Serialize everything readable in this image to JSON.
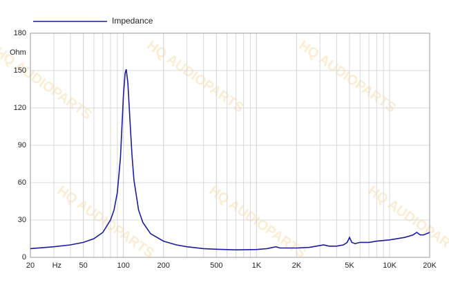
{
  "chart_data": {
    "type": "line",
    "watermark": "HQ AUDIOPARTS",
    "y_label": "Ohm",
    "x_label": "Hz",
    "x": [
      20,
      30,
      40,
      50,
      60,
      70,
      80,
      85,
      90,
      95,
      98,
      100,
      103,
      105,
      108,
      112,
      116,
      120,
      130,
      140,
      160,
      200,
      250,
      300,
      400,
      500,
      700,
      1000,
      1200,
      1400,
      1500,
      2000,
      2500,
      3000,
      3200,
      3500,
      4000,
      4500,
      4800,
      5000,
      5200,
      5500,
      6000,
      7000,
      8000,
      10000,
      13000,
      15000,
      16000,
      17000,
      18000,
      20000
    ],
    "series": [
      {
        "name": "Impedance",
        "color": "#1a1aa0",
        "values": [
          7,
          8.5,
          10,
          12,
          15,
          20,
          30,
          38,
          52,
          80,
          110,
          130,
          148,
          151,
          140,
          110,
          82,
          62,
          38,
          28,
          19,
          13,
          10,
          8.5,
          7,
          6.5,
          6,
          6.3,
          7,
          8.5,
          7.5,
          7.5,
          8,
          9.5,
          10,
          9,
          9,
          10,
          12,
          16,
          12,
          11,
          12,
          12,
          13,
          14,
          16,
          18,
          20,
          18,
          18,
          20
        ]
      }
    ],
    "xlim": [
      20,
      20000
    ],
    "ylim": [
      0,
      180
    ],
    "log_x": true,
    "grid": true,
    "xticks": [
      20,
      50,
      100,
      200,
      500,
      {
        "value": 1000,
        "label": "1K"
      },
      {
        "value": 2000,
        "label": "2K"
      },
      {
        "value": 5000,
        "label": "5K"
      },
      {
        "value": 10000,
        "label": "10K"
      },
      {
        "value": 20000,
        "label": "20K"
      }
    ],
    "yticks": [
      0,
      30,
      60,
      90,
      120,
      150,
      180
    ]
  }
}
